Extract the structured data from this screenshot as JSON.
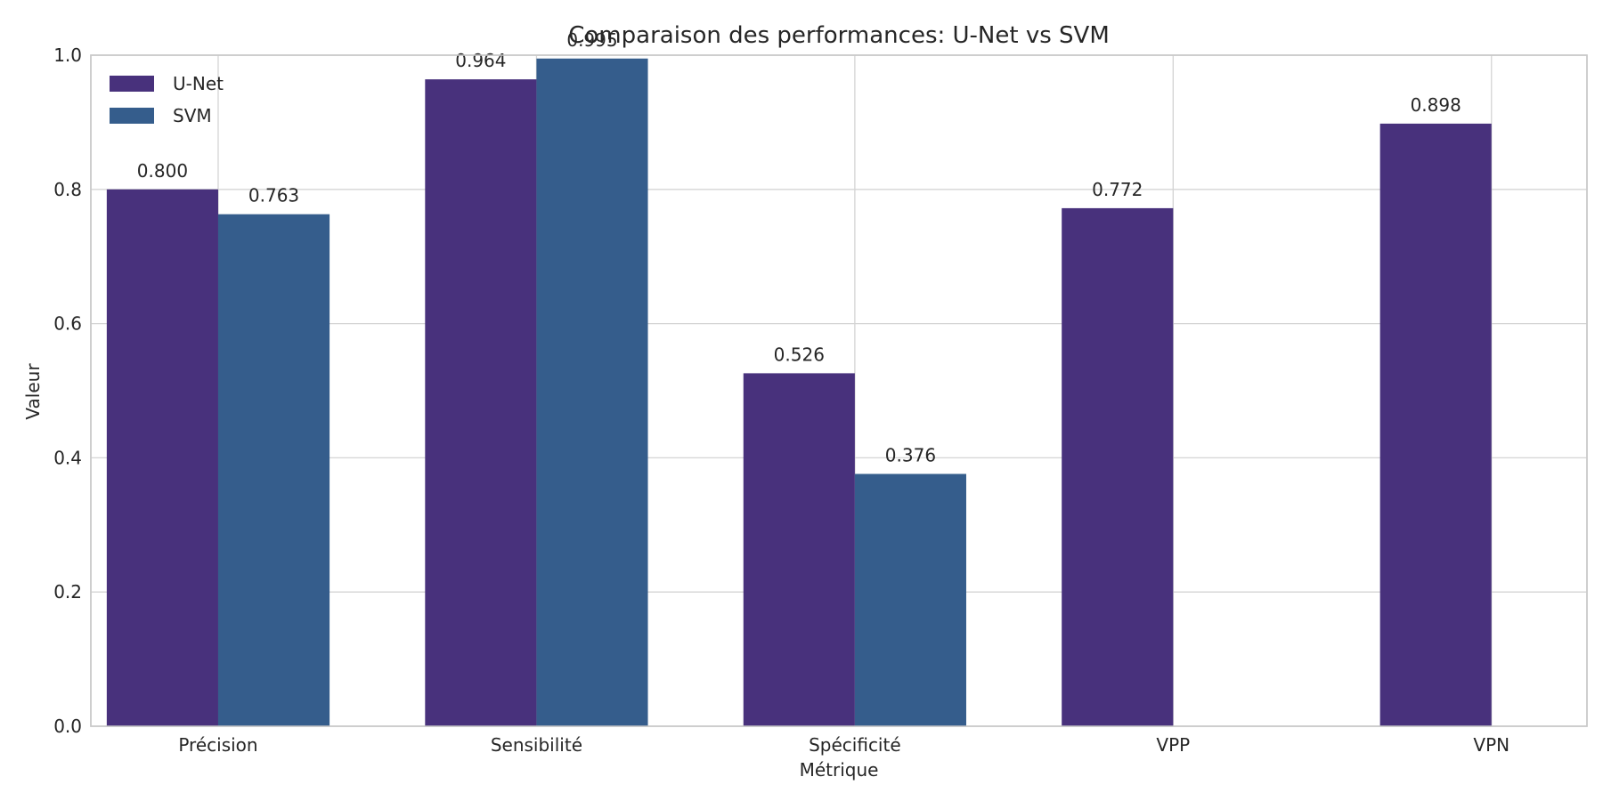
{
  "chart_data": {
    "type": "bar",
    "title": "Comparaison des performances: U-Net vs SVM",
    "xlabel": "Métrique",
    "ylabel": "Valeur",
    "ylim": [
      0,
      1.0
    ],
    "yticks": [
      "0.0",
      "0.2",
      "0.4",
      "0.6",
      "0.8",
      "1.0"
    ],
    "categories": [
      "Précision",
      "Sensibilité",
      "Spécificité",
      "VPP",
      "VPN"
    ],
    "series": [
      {
        "name": "U-Net",
        "color": "#48317c",
        "values": [
          0.8,
          0.964,
          0.526,
          0.772,
          0.898
        ],
        "labels": [
          "0.800",
          "0.964",
          "0.526",
          "0.772",
          "0.898"
        ]
      },
      {
        "name": "SVM",
        "color": "#355d8c",
        "values": [
          0.763,
          0.995,
          0.376,
          null,
          null
        ],
        "labels": [
          "0.763",
          "0.995",
          "0.376",
          null,
          null
        ]
      }
    ],
    "grid": true,
    "legend_position": "top-left"
  }
}
